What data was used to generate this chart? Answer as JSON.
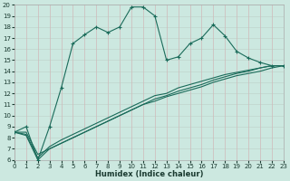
{
  "xlabel": "Humidex (Indice chaleur)",
  "bg_color": "#cce8e0",
  "grid_color_major": "#c8b8b8",
  "grid_color_minor": "#b8d8d0",
  "line_color": "#1a6b5a",
  "xlim": [
    0,
    23
  ],
  "ylim": [
    6,
    20
  ],
  "xticks": [
    0,
    1,
    2,
    3,
    4,
    5,
    6,
    7,
    8,
    9,
    10,
    11,
    12,
    13,
    14,
    15,
    16,
    17,
    18,
    19,
    20,
    21,
    22,
    23
  ],
  "yticks": [
    6,
    7,
    8,
    9,
    10,
    11,
    12,
    13,
    14,
    15,
    16,
    17,
    18,
    19,
    20
  ],
  "series": [
    {
      "x": [
        0,
        1,
        2,
        3,
        4,
        5,
        6,
        7,
        8,
        9,
        10,
        11,
        12,
        13,
        14,
        15,
        16,
        17,
        18,
        19,
        20,
        21,
        22,
        23
      ],
      "y": [
        8.5,
        9.0,
        6.0,
        9.0,
        12.5,
        16.5,
        17.3,
        18.0,
        17.5,
        18.0,
        19.8,
        19.8,
        19.0,
        15.0,
        15.3,
        16.5,
        17.0,
        18.2,
        17.2,
        15.8,
        15.2,
        14.8,
        14.5,
        14.5
      ],
      "marker": true
    },
    {
      "x": [
        0,
        1,
        2,
        3,
        4,
        5,
        6,
        7,
        8,
        9,
        10,
        11,
        12,
        13,
        14,
        15,
        16,
        17,
        18,
        19,
        20,
        21,
        22,
        23
      ],
      "y": [
        8.5,
        8.5,
        6.5,
        7.0,
        7.5,
        8.0,
        8.5,
        9.0,
        9.5,
        10.0,
        10.5,
        11.0,
        11.5,
        11.8,
        12.2,
        12.5,
        12.8,
        13.2,
        13.5,
        13.8,
        14.0,
        14.3,
        14.5,
        14.5
      ],
      "marker": false
    },
    {
      "x": [
        0,
        1,
        2,
        3,
        4,
        5,
        6,
        7,
        8,
        9,
        10,
        11,
        12,
        13,
        14,
        15,
        16,
        17,
        18,
        19,
        20,
        21,
        22,
        23
      ],
      "y": [
        8.5,
        8.3,
        6.2,
        7.2,
        7.8,
        8.3,
        8.8,
        9.3,
        9.8,
        10.3,
        10.8,
        11.3,
        11.8,
        12.0,
        12.5,
        12.8,
        13.1,
        13.4,
        13.7,
        13.9,
        14.1,
        14.3,
        14.5,
        14.5
      ],
      "marker": false
    },
    {
      "x": [
        0,
        1,
        2,
        3,
        4,
        5,
        6,
        7,
        8,
        9,
        10,
        11,
        12,
        13,
        14,
        15,
        16,
        17,
        18,
        19,
        20,
        21,
        22,
        23
      ],
      "y": [
        8.5,
        8.2,
        6.0,
        7.0,
        7.5,
        8.0,
        8.5,
        9.0,
        9.5,
        10.0,
        10.5,
        11.0,
        11.3,
        11.7,
        12.0,
        12.3,
        12.6,
        13.0,
        13.3,
        13.6,
        13.8,
        14.0,
        14.3,
        14.5
      ],
      "marker": false
    }
  ]
}
